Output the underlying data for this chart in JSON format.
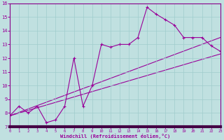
{
  "xlabel": "Windchill (Refroidissement éolien,°C)",
  "bg_color": "#c0e0e0",
  "grid_color": "#a0cccc",
  "line_color": "#990099",
  "border_color": "#880088",
  "xlim": [
    0,
    23
  ],
  "ylim": [
    7,
    16
  ],
  "xticks": [
    0,
    1,
    2,
    3,
    4,
    5,
    6,
    7,
    8,
    9,
    10,
    11,
    12,
    13,
    14,
    15,
    16,
    17,
    18,
    19,
    20,
    21,
    22,
    23
  ],
  "yticks": [
    7,
    8,
    9,
    10,
    11,
    12,
    13,
    14,
    15,
    16
  ],
  "line1_x": [
    0,
    1,
    2,
    3,
    4,
    5,
    6,
    7,
    8,
    9,
    10,
    11,
    12,
    13,
    14,
    15,
    16,
    17,
    18,
    19,
    20,
    21,
    22,
    23
  ],
  "line1_y": [
    7.8,
    8.5,
    8.0,
    8.5,
    7.3,
    7.5,
    8.5,
    12.0,
    8.5,
    10.0,
    13.0,
    12.8,
    13.0,
    13.0,
    13.5,
    15.7,
    15.2,
    14.8,
    14.4,
    13.5,
    13.5,
    13.5,
    12.9,
    12.5
  ],
  "line2_x": [
    0,
    23
  ],
  "line2_y": [
    7.8,
    13.5
  ],
  "line3_x": [
    0,
    23
  ],
  "line3_y": [
    7.8,
    12.3
  ]
}
